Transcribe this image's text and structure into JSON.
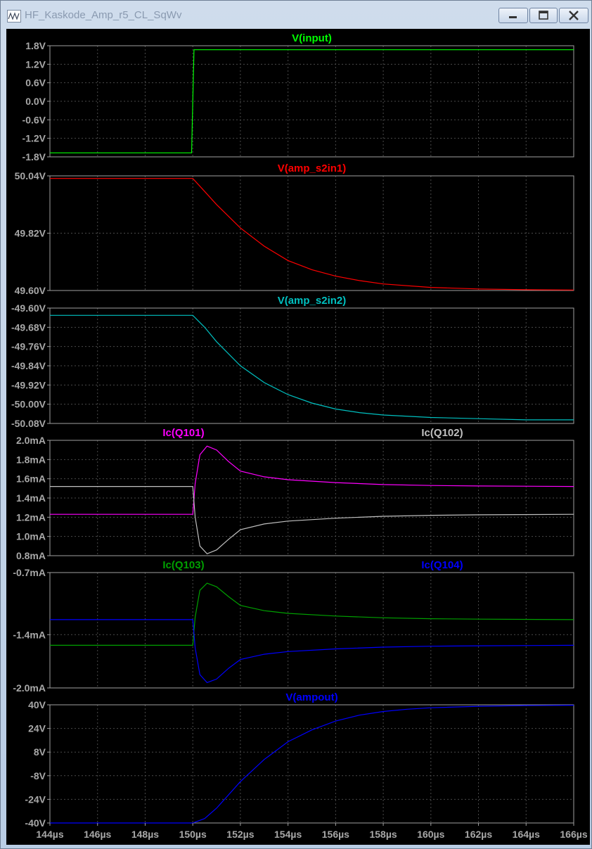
{
  "window": {
    "title": "HF_Kaskode_Amp_r5_CL_SqWv"
  },
  "colors": {
    "background": "#000000",
    "frame": "#a0a0a0",
    "grid": "#4a4a4a",
    "axis_text": "#a8a8a8"
  },
  "chart_data": [
    {
      "type": "line",
      "title": "",
      "xlim": [
        144,
        166
      ],
      "ylim": [
        -1.8,
        1.8
      ],
      "y_ticks": [
        -1.8,
        -1.2,
        -0.6,
        0.0,
        0.6,
        1.2,
        1.8
      ],
      "y_tick_labels": [
        "-1.8V",
        "-1.2V",
        "-0.6V",
        "0.0V",
        "0.6V",
        "1.2V",
        "1.8V"
      ],
      "grid": true,
      "series": [
        {
          "name": "V(input)",
          "color": "#00ff00",
          "label_pos": "center",
          "x": [
            144,
            149.95,
            150.05,
            166
          ],
          "y": [
            -1.67,
            -1.67,
            1.67,
            1.67
          ]
        }
      ]
    },
    {
      "type": "line",
      "title": "",
      "xlim": [
        144,
        166
      ],
      "ylim": [
        49.6,
        50.04
      ],
      "y_ticks": [
        49.6,
        49.82,
        50.04
      ],
      "y_tick_labels": [
        "49.60V",
        "49.82V",
        "50.04V"
      ],
      "grid": true,
      "series": [
        {
          "name": "V(amp_s2in1)",
          "color": "#ff0000",
          "label_pos": "center",
          "x": [
            144,
            150,
            150.5,
            151,
            152,
            153,
            154,
            155,
            156,
            157,
            158,
            160,
            162,
            164,
            166
          ],
          "y": [
            50.03,
            50.03,
            49.98,
            49.93,
            49.84,
            49.77,
            49.715,
            49.68,
            49.655,
            49.638,
            49.625,
            49.612,
            49.606,
            49.603,
            49.602
          ]
        }
      ]
    },
    {
      "type": "line",
      "title": "",
      "xlim": [
        144,
        166
      ],
      "ylim": [
        -50.08,
        -49.6
      ],
      "y_ticks": [
        -50.08,
        -50.0,
        -49.92,
        -49.84,
        -49.76,
        -49.68,
        -49.6
      ],
      "y_tick_labels": [
        "-50.08V",
        "-50.00V",
        "-49.92V",
        "-49.84V",
        "-49.76V",
        "-49.68V",
        "-49.60V"
      ],
      "grid": true,
      "series": [
        {
          "name": "V(amp_s2in2)",
          "color": "#00c0c0",
          "label_pos": "center",
          "x": [
            144,
            150,
            150.5,
            151,
            152,
            153,
            154,
            155,
            156,
            157,
            158,
            160,
            162,
            164,
            166
          ],
          "y": [
            -49.63,
            -49.63,
            -49.68,
            -49.74,
            -49.84,
            -49.91,
            -49.96,
            -49.995,
            -50.02,
            -50.035,
            -50.045,
            -50.055,
            -50.06,
            -50.065,
            -50.065
          ]
        }
      ]
    },
    {
      "type": "line",
      "title": "",
      "xlim": [
        144,
        166
      ],
      "ylim": [
        0.8,
        2.0
      ],
      "y_ticks": [
        0.8,
        1.0,
        1.2,
        1.4,
        1.6,
        1.8,
        2.0
      ],
      "y_tick_labels": [
        "0.8mA",
        "1.0mA",
        "1.2mA",
        "1.4mA",
        "1.6mA",
        "1.8mA",
        "2.0mA"
      ],
      "grid": true,
      "series": [
        {
          "name": "Ic(Q101)",
          "color": "#ff00ff",
          "label_pos": "left",
          "x": [
            144,
            150,
            150.1,
            150.3,
            150.6,
            151,
            151.5,
            152,
            153,
            154,
            156,
            158,
            160,
            162,
            166
          ],
          "y": [
            1.23,
            1.23,
            1.55,
            1.85,
            1.94,
            1.9,
            1.78,
            1.68,
            1.62,
            1.59,
            1.56,
            1.54,
            1.53,
            1.525,
            1.52
          ]
        },
        {
          "name": "Ic(Q102)",
          "color": "#c0c0c0",
          "label_pos": "right",
          "x": [
            144,
            150,
            150.1,
            150.3,
            150.6,
            151,
            151.5,
            152,
            153,
            154,
            156,
            158,
            160,
            162,
            166
          ],
          "y": [
            1.52,
            1.52,
            1.2,
            0.9,
            0.82,
            0.86,
            0.97,
            1.07,
            1.13,
            1.16,
            1.19,
            1.21,
            1.22,
            1.225,
            1.23
          ]
        }
      ]
    },
    {
      "type": "line",
      "title": "",
      "xlim": [
        144,
        166
      ],
      "ylim": [
        -2.0,
        -0.7
      ],
      "y_ticks": [
        -2.0,
        -1.4,
        -0.7
      ],
      "y_tick_labels": [
        "-2.0mA",
        "-1.4mA",
        "-0.7mA"
      ],
      "grid": true,
      "series": [
        {
          "name": "Ic(Q103)",
          "color": "#00a000",
          "label_pos": "left",
          "x": [
            144,
            150,
            150.1,
            150.3,
            150.6,
            151,
            151.5,
            152,
            153,
            154,
            156,
            158,
            160,
            162,
            166
          ],
          "y": [
            -1.52,
            -1.52,
            -1.2,
            -0.9,
            -0.82,
            -0.86,
            -0.97,
            -1.07,
            -1.13,
            -1.16,
            -1.19,
            -1.21,
            -1.22,
            -1.225,
            -1.23
          ]
        },
        {
          "name": "Ic(Q104)",
          "color": "#0000ff",
          "label_pos": "right",
          "x": [
            144,
            150,
            150.1,
            150.3,
            150.6,
            151,
            151.5,
            152,
            153,
            154,
            156,
            158,
            160,
            162,
            166
          ],
          "y": [
            -1.23,
            -1.23,
            -1.55,
            -1.85,
            -1.94,
            -1.9,
            -1.78,
            -1.68,
            -1.62,
            -1.59,
            -1.56,
            -1.54,
            -1.53,
            -1.525,
            -1.52
          ]
        }
      ]
    },
    {
      "type": "line",
      "title": "",
      "xlim": [
        144,
        166
      ],
      "ylim": [
        -40,
        40
      ],
      "y_ticks": [
        -40,
        -24,
        -8,
        8,
        24,
        40
      ],
      "y_tick_labels": [
        "-40V",
        "-24V",
        "-8V",
        "8V",
        "24V",
        "40V"
      ],
      "x_ticks": [
        144,
        146,
        148,
        150,
        152,
        154,
        156,
        158,
        160,
        162,
        164,
        166
      ],
      "x_tick_labels": [
        "144µs",
        "146µs",
        "148µs",
        "150µs",
        "152µs",
        "154µs",
        "156µs",
        "158µs",
        "160µs",
        "162µs",
        "164µs",
        "166µs"
      ],
      "grid": true,
      "series": [
        {
          "name": "V(ampout)",
          "color": "#0000ff",
          "label_pos": "center",
          "x": [
            144,
            150,
            150.5,
            151,
            152,
            153,
            154,
            155,
            156,
            157,
            158,
            159,
            160,
            162,
            164,
            166
          ],
          "y": [
            -40,
            -40,
            -37,
            -30,
            -12,
            3,
            15,
            23,
            29,
            33,
            35.5,
            37,
            38,
            39,
            39.5,
            39.7
          ]
        }
      ]
    }
  ]
}
